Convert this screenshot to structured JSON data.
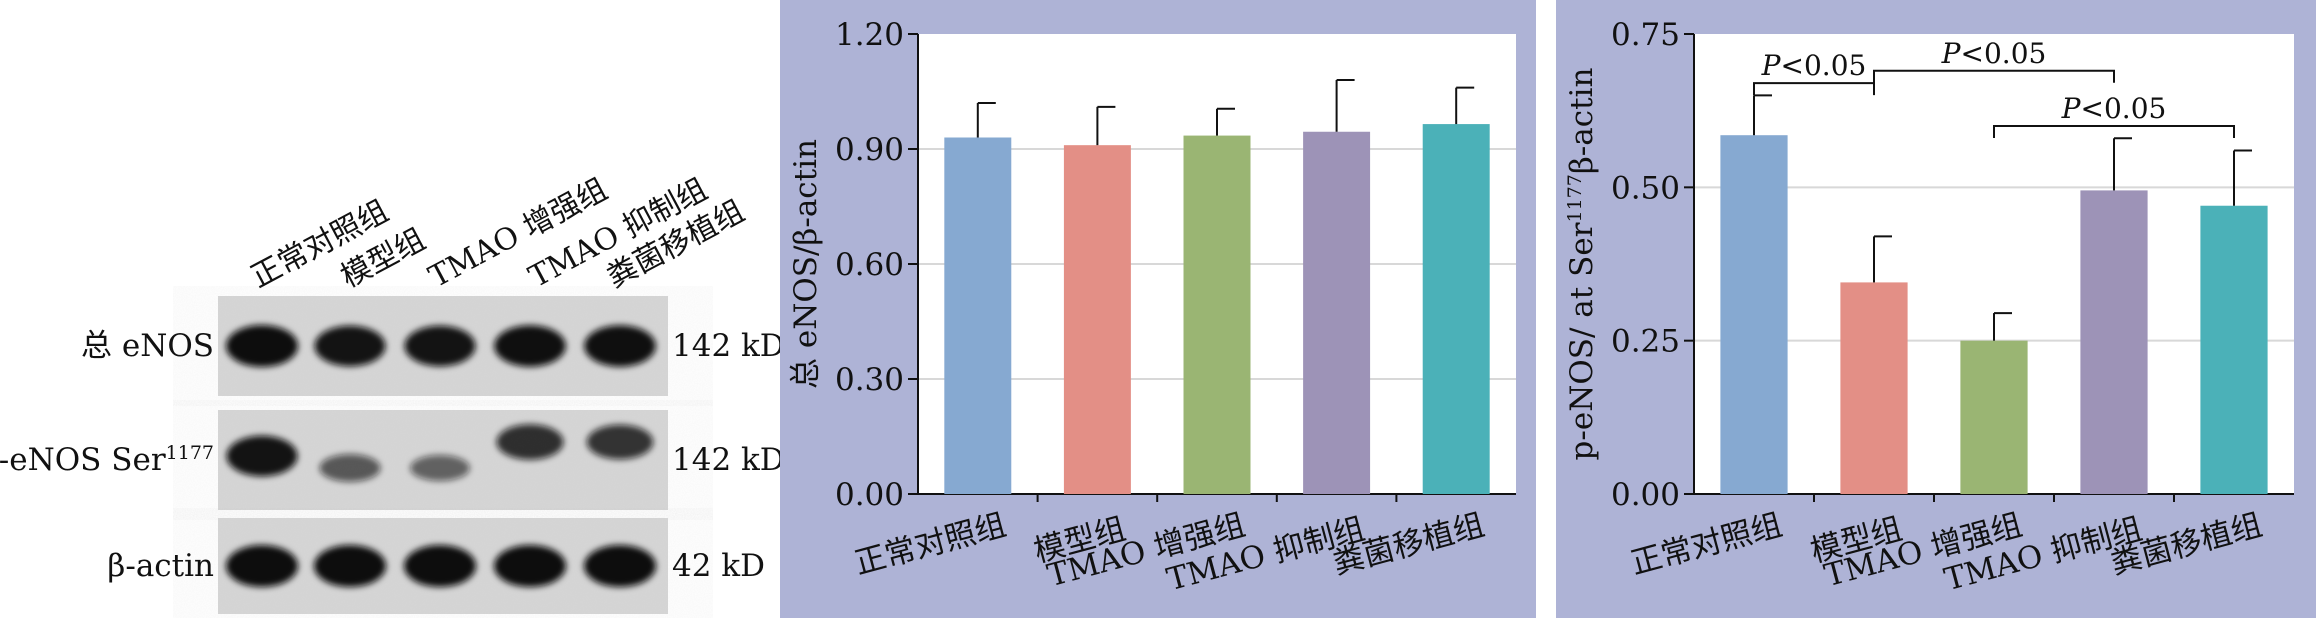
{
  "colors": {
    "panel_bg": "#aeb3d6",
    "plot_bg": "#ffffff",
    "grid": "#d8d8d8",
    "bar_colors": [
      "#86a9d1",
      "#e38f86",
      "#9ab573",
      "#9d93b7",
      "#4bb1b8"
    ]
  },
  "blot": {
    "groups": [
      "正常对照组",
      "模型组",
      "TMAO 增强组",
      "TMAO 抑制组",
      "粪菌移植组"
    ],
    "rows": [
      {
        "label": "总 eNOS",
        "label_sup": "",
        "size": "142 kD",
        "intensities": [
          1.0,
          0.95,
          0.95,
          0.98,
          0.98
        ]
      },
      {
        "label": "p-eNOS Ser",
        "label_sup": "1177",
        "size": "142 kD",
        "intensities": [
          0.95,
          0.45,
          0.38,
          0.75,
          0.72
        ]
      },
      {
        "label": "β-actin",
        "label_sup": "",
        "size": "42 kD",
        "intensities": [
          1.0,
          1.0,
          1.0,
          1.0,
          1.0
        ]
      }
    ]
  },
  "chart_data": [
    {
      "type": "bar",
      "categories": [
        "正常对照组",
        "模型组",
        "TMAO 增强组",
        "TMAO 抑制组",
        "粪菌移植组"
      ],
      "values": [
        0.93,
        0.91,
        0.935,
        0.945,
        0.965
      ],
      "errors": [
        0.09,
        0.1,
        0.07,
        0.135,
        0.095
      ],
      "ylabel": "总 eNOS/β-actin",
      "ylim": [
        0,
        1.2
      ],
      "yticks": [
        "0.00",
        "0.30",
        "0.60",
        "0.90",
        "1.20"
      ],
      "tick_values": [
        0,
        0.3,
        0.6,
        0.9,
        1.2
      ],
      "grid": true
    },
    {
      "type": "bar",
      "categories": [
        "正常对照组",
        "模型组",
        "TMAO 增强组",
        "TMAO 抑制组",
        "粪菌移植组"
      ],
      "values": [
        0.585,
        0.345,
        0.25,
        0.495,
        0.47
      ],
      "errors": [
        0.065,
        0.075,
        0.045,
        0.085,
        0.09
      ],
      "ylabel_parts": [
        "p-eNOS/ at Ser",
        "1177",
        "β-actin"
      ],
      "ylim": [
        0,
        0.75
      ],
      "yticks": [
        "0.00",
        "0.25",
        "0.50",
        "0.75"
      ],
      "tick_values": [
        0,
        0.25,
        0.5,
        0.75
      ],
      "grid": true,
      "annotations": [
        {
          "from": 0,
          "to": 1,
          "y": 0.67,
          "text_italic": "P",
          "text": "<0.05"
        },
        {
          "from": 1,
          "to": 3,
          "y": 0.69,
          "text_italic": "P",
          "text": "<0.05"
        },
        {
          "from": 2,
          "to": 4,
          "y": 0.6,
          "text_italic": "P",
          "text": "<0.05"
        }
      ]
    }
  ]
}
